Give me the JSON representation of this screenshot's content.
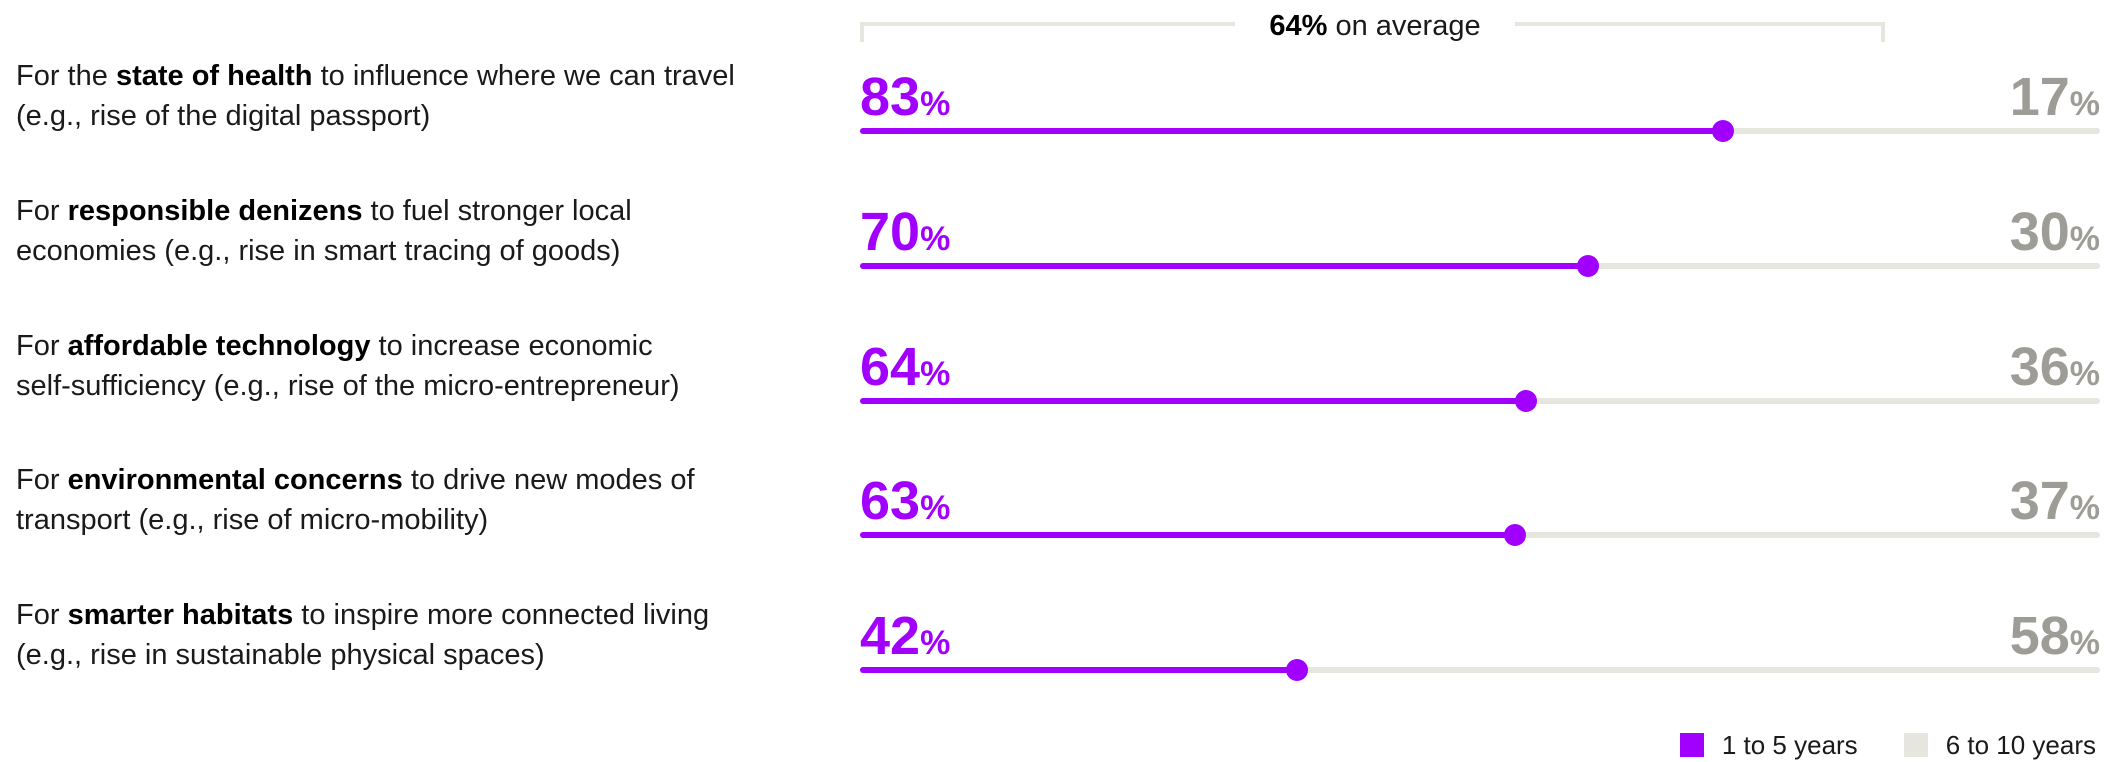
{
  "average": {
    "value_text": "64%",
    "suffix": "on average"
  },
  "colors": {
    "accent": "#a100ff",
    "track": "#e6e6df",
    "right_value": "#9d9c96"
  },
  "legend": [
    {
      "label": "1 to 5 years",
      "color": "#a100ff"
    },
    {
      "label": "6 to 10 years",
      "color": "#e6e6df"
    }
  ],
  "rows": [
    {
      "pre": "For the ",
      "bold": "state of health",
      "post": " to influence where we can travel",
      "line2": "(e.g., rise of the digital passport)",
      "left_value": "83",
      "right_value": "17"
    },
    {
      "pre": "For ",
      "bold": "responsible denizens",
      "post": " to fuel stronger local",
      "line2": "economies (e.g., rise in smart tracing of goods)",
      "left_value": "70",
      "right_value": "30"
    },
    {
      "pre": "For ",
      "bold": "affordable technology",
      "post": " to increase economic",
      "line2": "self-sufficiency (e.g., rise of the micro-entrepreneur)",
      "left_value": "64",
      "right_value": "36"
    },
    {
      "pre": "For ",
      "bold": "environmental concerns",
      "post": " to drive new modes of",
      "line2": "transport (e.g., rise of micro-mobility)",
      "left_value": "63",
      "right_value": "37"
    },
    {
      "pre": "For ",
      "bold": "smarter habitats",
      "post": " to inspire more connected living",
      "line2": "(e.g., rise in sustainable physical spaces)",
      "left_value": "42",
      "right_value": "58"
    }
  ],
  "chart_data": {
    "type": "bar",
    "orientation": "horizontal-stacked",
    "categories": [
      "For the state of health to influence where we can travel (e.g., rise of the digital passport)",
      "For responsible denizens to fuel stronger local economies (e.g., rise in smart tracing of goods)",
      "For affordable technology to increase economic self-sufficiency (e.g., rise of the micro-entrepreneur)",
      "For environmental concerns to drive new modes of transport (e.g., rise of micro-mobility)",
      "For smarter habitats to inspire more connected living (e.g., rise in sustainable physical spaces)"
    ],
    "series": [
      {
        "name": "1 to 5 years",
        "values": [
          83,
          70,
          64,
          63,
          42
        ]
      },
      {
        "name": "6 to 10 years",
        "values": [
          17,
          30,
          36,
          37,
          58
        ]
      }
    ],
    "annotations": [
      "64% on average"
    ],
    "xlim": [
      0,
      100
    ],
    "grid": false,
    "legend_position": "bottom-right"
  }
}
